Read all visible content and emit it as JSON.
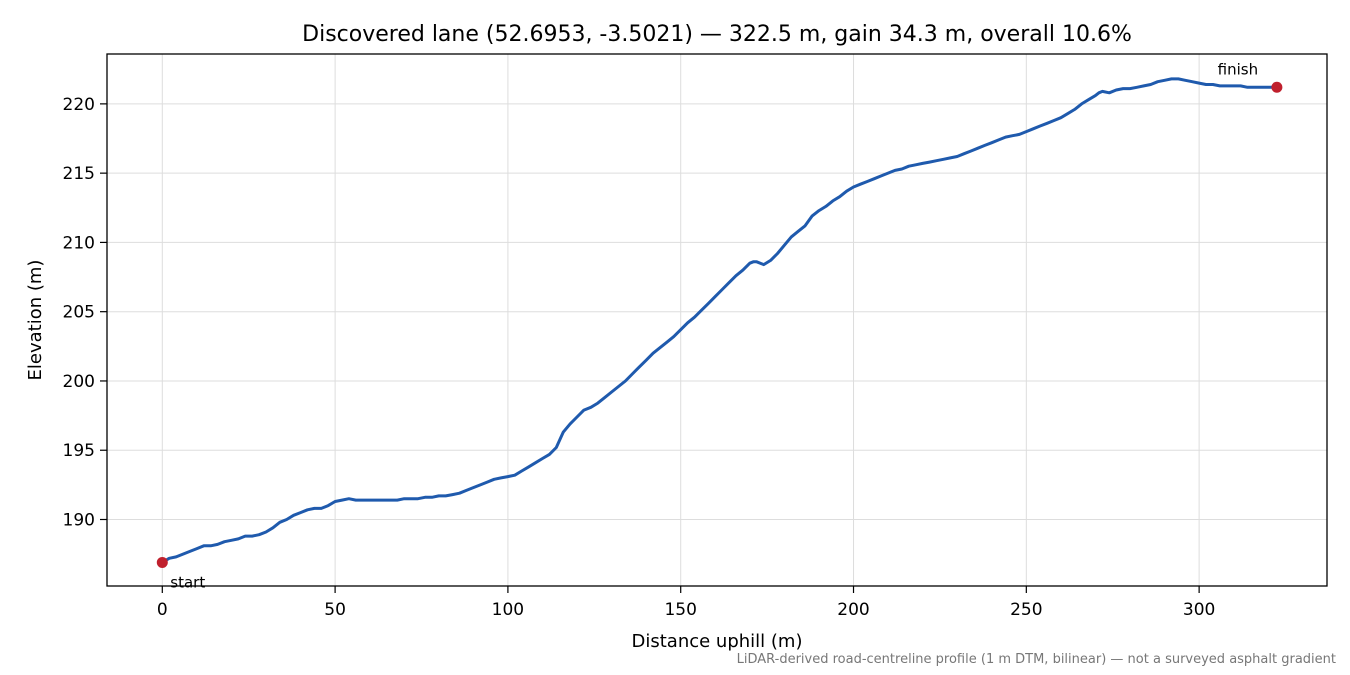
{
  "chart_data": {
    "type": "line",
    "title": "Discovered lane (52.6953, -3.5021) — 322.5 m, gain 34.3 m, overall 10.6%",
    "xlabel": "Distance uphill (m)",
    "ylabel": "Elevation (m)",
    "xlim": [
      -16,
      337
    ],
    "ylim": [
      185.2,
      223.6
    ],
    "xticks": [
      0,
      50,
      100,
      150,
      200,
      250,
      300
    ],
    "yticks": [
      190,
      195,
      200,
      205,
      210,
      215,
      220
    ],
    "grid": true,
    "line_color": "#1f5aad",
    "marker_color": "#c0202d",
    "series": [
      {
        "x": [
          0,
          2,
          4,
          6,
          8,
          10,
          12,
          14,
          16,
          18,
          20,
          22,
          24,
          26,
          28,
          30,
          32,
          34,
          36,
          38,
          40,
          42,
          44,
          46,
          48,
          50,
          52,
          54,
          56,
          58,
          60,
          62,
          64,
          66,
          68,
          70,
          72,
          74,
          76,
          78,
          80,
          82,
          84,
          86,
          88,
          90,
          92,
          94,
          96,
          98,
          100,
          102,
          104,
          106,
          108,
          110,
          112,
          114,
          116,
          118,
          120,
          122,
          124,
          126,
          128,
          130,
          132,
          134,
          136,
          138,
          140,
          142,
          144,
          146,
          148,
          150,
          152,
          154,
          156,
          158,
          160,
          162,
          164,
          166,
          168,
          170,
          171,
          172,
          174,
          176,
          178,
          180,
          182,
          184,
          186,
          188,
          190,
          192,
          194,
          196,
          198,
          200,
          202,
          204,
          206,
          208,
          210,
          212,
          214,
          216,
          218,
          220,
          222,
          224,
          226,
          228,
          230,
          232,
          234,
          236,
          238,
          240,
          242,
          244,
          246,
          248,
          250,
          252,
          254,
          256,
          258,
          260,
          262,
          264,
          266,
          268,
          270,
          271,
          272,
          274,
          276,
          278,
          280,
          282,
          284,
          286,
          288,
          290,
          292,
          294,
          296,
          298,
          300,
          302,
          304,
          306,
          308,
          310,
          312,
          314,
          316,
          318,
          320,
          322.5
        ],
        "y": [
          186.9,
          187.2,
          187.3,
          187.5,
          187.7,
          187.9,
          188.1,
          188.1,
          188.2,
          188.4,
          188.5,
          188.6,
          188.8,
          188.8,
          188.9,
          189.1,
          189.4,
          189.8,
          190.0,
          190.3,
          190.5,
          190.7,
          190.8,
          190.8,
          191.0,
          191.3,
          191.4,
          191.5,
          191.4,
          191.4,
          191.4,
          191.4,
          191.4,
          191.4,
          191.4,
          191.5,
          191.5,
          191.5,
          191.6,
          191.6,
          191.7,
          191.7,
          191.8,
          191.9,
          192.1,
          192.3,
          192.5,
          192.7,
          192.9,
          193.0,
          193.1,
          193.2,
          193.5,
          193.8,
          194.1,
          194.4,
          194.7,
          195.2,
          196.3,
          196.9,
          197.4,
          197.9,
          198.1,
          198.4,
          198.8,
          199.2,
          199.6,
          200.0,
          200.5,
          201.0,
          201.5,
          202.0,
          202.4,
          202.8,
          203.2,
          203.7,
          204.2,
          204.6,
          205.1,
          205.6,
          206.1,
          206.6,
          207.1,
          207.6,
          208.0,
          208.5,
          208.6,
          208.6,
          208.4,
          208.7,
          209.2,
          209.8,
          210.4,
          210.8,
          211.2,
          211.9,
          212.3,
          212.6,
          213.0,
          213.3,
          213.7,
          214.0,
          214.2,
          214.4,
          214.6,
          214.8,
          215.0,
          215.2,
          215.3,
          215.5,
          215.6,
          215.7,
          215.8,
          215.9,
          216.0,
          216.1,
          216.2,
          216.4,
          216.6,
          216.8,
          217.0,
          217.2,
          217.4,
          217.6,
          217.7,
          217.8,
          218.0,
          218.2,
          218.4,
          218.6,
          218.8,
          219.0,
          219.3,
          219.6,
          220.0,
          220.3,
          220.6,
          220.8,
          220.9,
          220.8,
          221.0,
          221.1,
          221.1,
          221.2,
          221.3,
          221.4,
          221.6,
          221.7,
          221.8,
          221.8,
          221.7,
          221.6,
          221.5,
          221.4,
          221.4,
          221.3,
          221.3,
          221.3,
          221.3,
          221.2,
          221.2,
          221.2,
          221.2,
          221.2
        ],
        "color": "#1f5aad"
      }
    ],
    "annotations": [
      {
        "label": "start",
        "x": 0,
        "y": 186.9
      },
      {
        "label": "finish",
        "x": 322.5,
        "y": 221.2
      }
    ],
    "note": "LiDAR-derived road-centreline profile (1 m DTM, bilinear) — not a surveyed asphalt gradient"
  }
}
